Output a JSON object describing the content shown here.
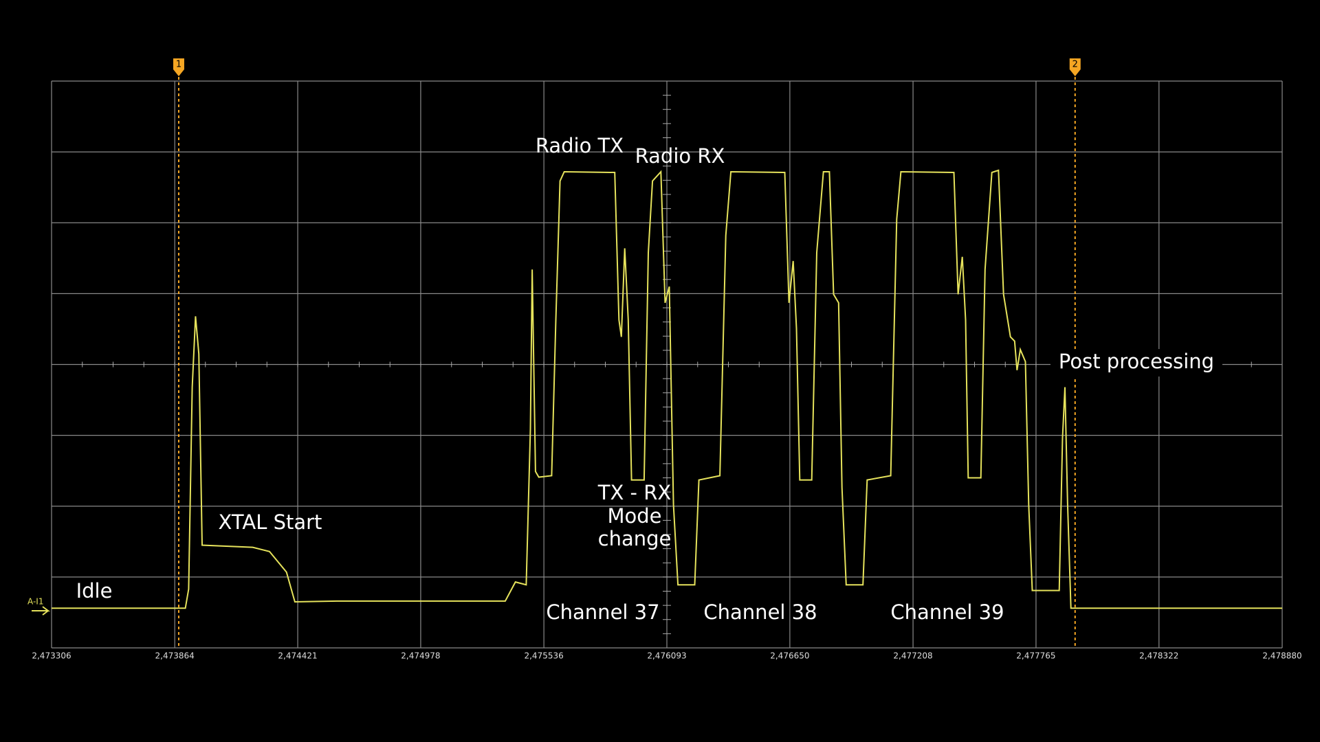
{
  "chart_data": {
    "type": "line",
    "color": "#e6e35c",
    "grid": true,
    "channel_label": "A-I1",
    "xlim": [
      2.473306,
      2.47888
    ],
    "xticks": [
      {
        "value": 2.473306,
        "label": "2,473306"
      },
      {
        "value": 2.473864,
        "label": "2,473864"
      },
      {
        "value": 2.474421,
        "label": "2,474421"
      },
      {
        "value": 2.474978,
        "label": "2,474978"
      },
      {
        "value": 2.475536,
        "label": "2,475536"
      },
      {
        "value": 2.476093,
        "label": "2,476093"
      },
      {
        "value": 2.47665,
        "label": "2,476650"
      },
      {
        "value": 2.477208,
        "label": "2,477208"
      },
      {
        "value": 2.477765,
        "label": "2,477765"
      },
      {
        "value": 2.478322,
        "label": "2,478322"
      },
      {
        "value": 2.47888,
        "label": "2,478880"
      }
    ],
    "ylim": [
      0,
      8
    ],
    "yticks": [
      0,
      1,
      2,
      3,
      4,
      5,
      6,
      7,
      8
    ],
    "cursors": [
      {
        "label": "1",
        "x": 2.473882
      },
      {
        "label": "2",
        "x": 2.477942
      }
    ],
    "annotations": [
      "Radio TX",
      "Radio RX",
      "XTAL Start",
      "Idle",
      "TX - RX",
      "Mode",
      "change",
      "Post processing",
      "Channel 37",
      "Channel 38",
      "Channel 39"
    ],
    "x": [
      2.473306,
      2.473912,
      2.473927,
      2.473943,
      2.473958,
      2.473973,
      2.473988,
      2.474217,
      2.474293,
      2.47437,
      2.474408,
      2.474598,
      2.475361,
      2.475407,
      2.475456,
      2.475475,
      2.475483,
      2.475498,
      2.475513,
      2.475571,
      2.47559,
      2.475609,
      2.475628,
      2.475857,
      2.475876,
      2.475887,
      2.475902,
      2.475918,
      2.475933,
      2.47599,
      2.476009,
      2.476028,
      2.476066,
      2.476085,
      2.476104,
      2.476123,
      2.476143,
      2.476219,
      2.476238,
      2.476333,
      2.47636,
      2.476383,
      2.476627,
      2.476646,
      2.476665,
      2.47668,
      2.476695,
      2.476749,
      2.476772,
      2.476802,
      2.476829,
      2.476848,
      2.476871,
      2.476886,
      2.476905,
      2.476981,
      2.477,
      2.477107,
      2.477134,
      2.477153,
      2.477393,
      2.477412,
      2.477431,
      2.477446,
      2.477458,
      2.477515,
      2.477534,
      2.477565,
      2.477595,
      2.477618,
      2.477649,
      2.477668,
      2.477679,
      2.477694,
      2.477717,
      2.477732,
      2.477748,
      2.47787,
      2.477885,
      2.477896,
      2.477908,
      2.477923,
      2.47888
    ],
    "values": [
      0.56,
      0.56,
      0.83,
      3.68,
      4.68,
      4.15,
      1.45,
      1.42,
      1.36,
      1.07,
      0.65,
      0.66,
      0.66,
      0.93,
      0.89,
      3.09,
      5.34,
      2.49,
      2.41,
      2.43,
      4.63,
      6.59,
      6.72,
      6.71,
      4.63,
      4.39,
      5.64,
      4.63,
      2.37,
      2.37,
      5.58,
      6.59,
      6.72,
      4.87,
      5.1,
      2.02,
      0.89,
      0.89,
      2.37,
      2.43,
      5.82,
      6.72,
      6.71,
      4.87,
      5.46,
      4.51,
      2.37,
      2.37,
      5.58,
      6.72,
      6.72,
      4.99,
      4.87,
      2.26,
      0.89,
      0.89,
      2.37,
      2.43,
      6.05,
      6.72,
      6.71,
      4.99,
      5.52,
      4.63,
      2.4,
      2.4,
      5.34,
      6.71,
      6.74,
      4.99,
      4.39,
      4.33,
      3.92,
      4.21,
      4.04,
      2.02,
      0.81,
      0.81,
      2.97,
      3.68,
      2.02,
      0.56,
      0.56
    ]
  }
}
